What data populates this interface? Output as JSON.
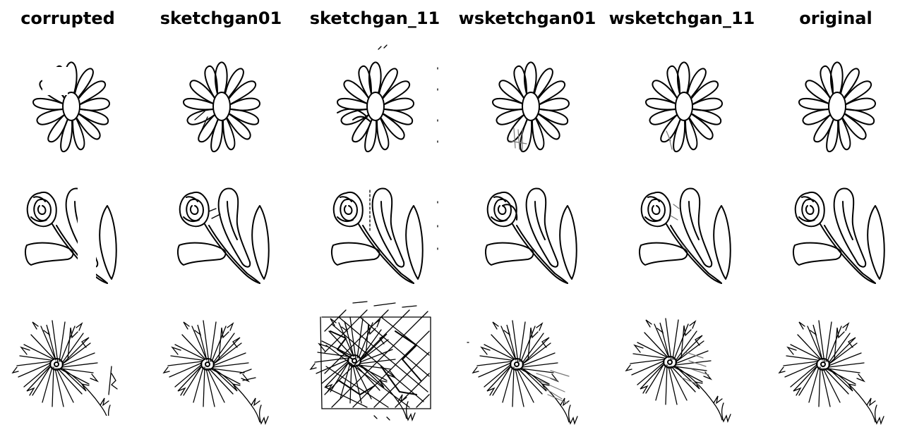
{
  "columns": [
    {
      "id": "corrupted",
      "title": "corrupted"
    },
    {
      "id": "sketchgan01",
      "title": "sketchgan01"
    },
    {
      "id": "sketchgan_11",
      "title": "sketchgan_11"
    },
    {
      "id": "wsketchgan01",
      "title": "wsketchgan01"
    },
    {
      "id": "wsketchgan_11",
      "title": "wsketchgan_11"
    },
    {
      "id": "original",
      "title": "original"
    }
  ],
  "rows": [
    {
      "subject": "daisy-flower"
    },
    {
      "subject": "rose-with-leaves"
    },
    {
      "subject": "spiky-flower"
    }
  ]
}
